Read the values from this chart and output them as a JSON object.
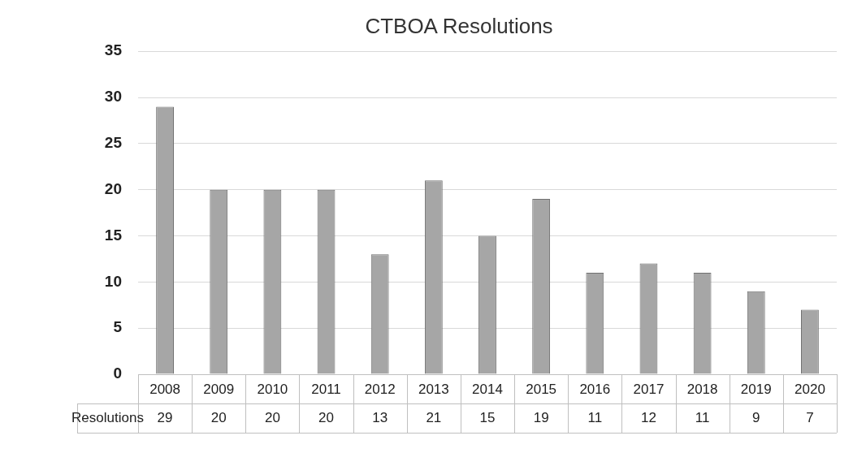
{
  "chart_data": {
    "type": "bar",
    "title": "CTBOA Resolutions",
    "categories": [
      "2008",
      "2009",
      "2010",
      "2011",
      "2012",
      "2013",
      "2014",
      "2015",
      "2016",
      "2017",
      "2018",
      "2019",
      "2020"
    ],
    "series": [
      {
        "name": "Resolutions",
        "color": "#a6a6a6",
        "values": [
          29,
          20,
          20,
          20,
          13,
          21,
          15,
          19,
          11,
          12,
          11,
          9,
          7
        ]
      }
    ],
    "ylim": [
      0,
      35
    ],
    "yticks": [
      0,
      5,
      10,
      15,
      20,
      25,
      30,
      35
    ],
    "grid": "y",
    "legend": false,
    "data_labels": true
  }
}
